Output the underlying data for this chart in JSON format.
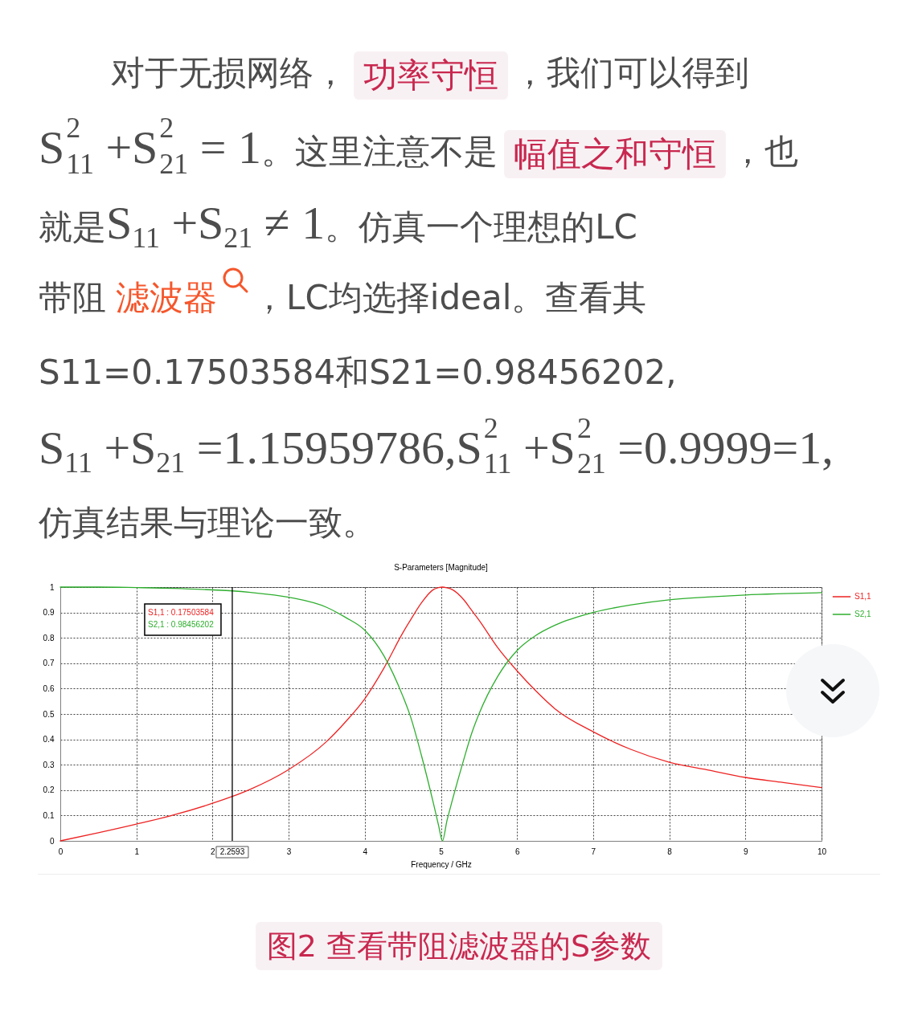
{
  "chart_data": {
    "type": "line",
    "title": "S-Parameters [Magnitude]",
    "xlabel": "Frequency / GHz",
    "x": [
      0,
      0.5,
      1,
      1.5,
      2,
      2.2593,
      2.5,
      3,
      3.5,
      3.75,
      4,
      4.25,
      4.5,
      4.6,
      4.75,
      4.9,
      4.97,
      5.02,
      5.08,
      5.15,
      5.3,
      5.4,
      5.5,
      5.75,
      6,
      6.25,
      6.5,
      7,
      7.5,
      8,
      8.5,
      9,
      9.5,
      10
    ],
    "series": [
      {
        "name": "S1,1",
        "color": "#ee2222",
        "values": [
          0,
          0.032,
          0.066,
          0.103,
          0.148,
          0.175,
          0.204,
          0.281,
          0.392,
          0.47,
          0.56,
          0.68,
          0.82,
          0.87,
          0.94,
          0.99,
          0.998,
          1,
          0.997,
          0.99,
          0.95,
          0.91,
          0.87,
          0.76,
          0.67,
          0.59,
          0.52,
          0.43,
          0.36,
          0.31,
          0.28,
          0.25,
          0.23,
          0.21
        ]
      },
      {
        "name": "S2,1",
        "color": "#2eae2e",
        "values": [
          1,
          1,
          0.998,
          0.995,
          0.989,
          0.985,
          0.979,
          0.96,
          0.92,
          0.88,
          0.83,
          0.73,
          0.57,
          0.49,
          0.33,
          0.15,
          0.06,
          0,
          0.08,
          0.16,
          0.32,
          0.42,
          0.5,
          0.65,
          0.75,
          0.81,
          0.85,
          0.9,
          0.93,
          0.95,
          0.961,
          0.969,
          0.974,
          0.978
        ]
      }
    ],
    "xlim": [
      0,
      10
    ],
    "xticks": [
      0,
      1,
      2,
      3,
      4,
      5,
      6,
      7,
      8,
      9,
      10
    ],
    "ylim": [
      0,
      1
    ],
    "yticks": [
      0,
      0.1,
      0.2,
      0.3,
      0.4,
      0.5,
      0.6,
      0.7,
      0.8,
      0.9,
      1
    ],
    "grid": true,
    "legend": "right",
    "ref_lines": [
      {
        "axis": "x",
        "value": 2.2593,
        "label": "2.2593",
        "color": "#000000"
      }
    ],
    "annotations": [
      "对于无损网络，",
      "功率守恒",
      "，我们可以得到",
      "S$^{2}$$_{11}$ +S$^{2}$$_{21}$ = 1",
      "。这里注意不是",
      "幅值之和守恒",
      "，也",
      "就是",
      "S$_{11}$ +S$_{21}$ ≠ 1",
      "。仿真一个理想的LC",
      "带阻",
      "滤波器",
      "，LC均选择ideal。查看其",
      "S11=0.17503584和S21=0.98456202,",
      "S$_{11}$ +S$_{21}$ =1.15959786,S$^{2}$$_{11}$ +S$^{2}$$_{21}$ =0.9999=1,",
      "仿真结果与理论一致。",
      "S1,1 : 0.17503584",
      "S2,1 : 0.98456202",
      "图2 查看带阻滤波器的S参数"
    ]
  }
}
